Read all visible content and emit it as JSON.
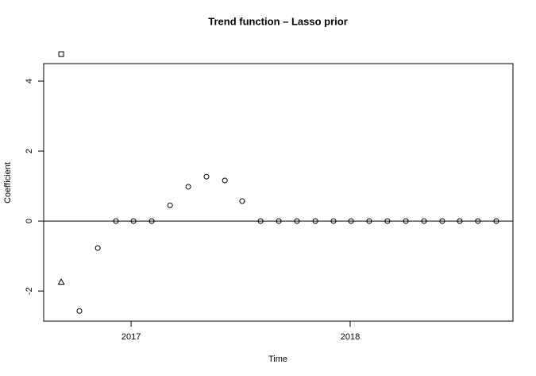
{
  "chart_data": {
    "type": "scatter",
    "title": "Trend function – Lasso prior",
    "x_label": "Time",
    "y_label": "Coefficient",
    "xlim": [
      2016.601,
      2018.743
    ],
    "ylim": [
      -2.86,
      4.5
    ],
    "xticks": [
      2017,
      2018
    ],
    "yticks": [
      -2,
      0,
      2,
      4
    ],
    "hline": 0,
    "series": [
      {
        "marker": "square",
        "color": "#000000",
        "x": [
          2016.681
        ],
        "values": [
          4.77
        ]
      },
      {
        "marker": "triangle",
        "color": "#000000",
        "x": [
          2016.681
        ],
        "values": [
          -1.75
        ]
      },
      {
        "marker": "circle",
        "color": "#000000",
        "x": [
          2016.764,
          2016.848,
          2016.931,
          2017.011,
          2017.094,
          2017.178,
          2017.261,
          2017.344,
          2017.428,
          2017.507,
          2017.591,
          2017.674,
          2017.757,
          2017.841,
          2017.924,
          2018.004,
          2018.087,
          2018.17,
          2018.254,
          2018.337,
          2018.42,
          2018.5,
          2018.583,
          2018.667
        ],
        "values": [
          -2.57,
          -0.77,
          0,
          0,
          0,
          0.45,
          0.98,
          1.27,
          1.16,
          0.57,
          0,
          0,
          0,
          0,
          0,
          0,
          0,
          0,
          0,
          0,
          0,
          0,
          0,
          0
        ]
      }
    ]
  }
}
